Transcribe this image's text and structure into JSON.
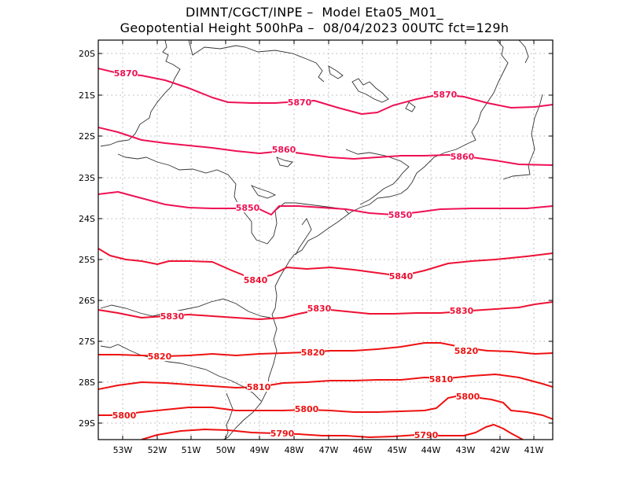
{
  "title": {
    "line1": "DIMNT/CGCT/INPE –  Model Eta05_M01_",
    "line2": "Geopotential Height 500hPa –  08/04/2023 00UTC fct=129h"
  },
  "map": {
    "x_ticks": [
      "53W",
      "52W",
      "51W",
      "50W",
      "49W",
      "48W",
      "47W",
      "46W",
      "45W",
      "44W",
      "43W",
      "42W",
      "41W"
    ],
    "y_ticks": [
      "20S",
      "21S",
      "22S",
      "23S",
      "24S",
      "25S",
      "26S",
      "27S",
      "28S",
      "29S"
    ],
    "colors": {
      "frame": "#000000",
      "grid": "#999999",
      "coast": "#333333"
    }
  },
  "contours": [
    {
      "value": "5870",
      "color": "#ee1155"
    },
    {
      "value": "5860",
      "color": "#ee1155"
    },
    {
      "value": "5850",
      "color": "#ee1155"
    },
    {
      "value": "5840",
      "color": "#ee1133"
    },
    {
      "value": "5830",
      "color": "#ee1133"
    },
    {
      "value": "5820",
      "color": "#ee1111"
    },
    {
      "value": "5810",
      "color": "#ee1111"
    },
    {
      "value": "5800",
      "color": "#ee1111"
    },
    {
      "value": "5790",
      "color": "#ee1111"
    }
  ]
}
